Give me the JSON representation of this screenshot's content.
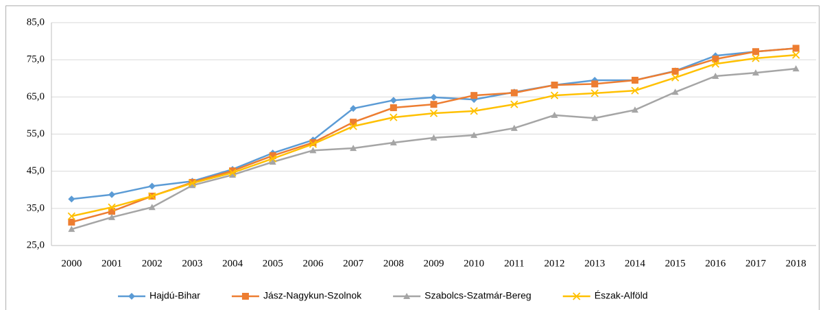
{
  "chart_data": {
    "type": "line",
    "categories": [
      "2000",
      "2001",
      "2002",
      "2003",
      "2004",
      "2005",
      "2006",
      "2007",
      "2008",
      "2009",
      "2010",
      "2011",
      "2012",
      "2013",
      "2014",
      "2015",
      "2016",
      "2017",
      "2018"
    ],
    "series": [
      {
        "name": "Hajdú-Bihar",
        "color": "#5b9bd5",
        "marker": "diamond",
        "values": [
          37.5,
          38.7,
          41.0,
          42.3,
          45.5,
          49.9,
          53.4,
          61.9,
          64.1,
          64.9,
          64.3,
          66.3,
          68.2,
          69.5,
          69.5,
          72.0,
          76.1,
          77.2,
          78.1
        ]
      },
      {
        "name": "Jász-Nagykun-Szolnok",
        "color": "#ed7d31",
        "marker": "square",
        "values": [
          31.3,
          34.2,
          38.3,
          42.0,
          45.1,
          49.2,
          52.7,
          58.2,
          62.1,
          63.0,
          65.4,
          66.1,
          68.2,
          68.5,
          69.5,
          71.9,
          75.2,
          77.2,
          78.1
        ]
      },
      {
        "name": "Szabolcs-Szatmár-Bereg",
        "color": "#a5a5a5",
        "marker": "triangle",
        "values": [
          29.4,
          32.6,
          35.3,
          41.2,
          44.0,
          47.5,
          50.6,
          51.2,
          52.7,
          54.0,
          54.7,
          56.6,
          60.1,
          59.3,
          61.5,
          66.3,
          70.6,
          71.5,
          72.6
        ]
      },
      {
        "name": "Észak-Alföld",
        "color": "#ffc000",
        "marker": "x",
        "values": [
          32.9,
          35.3,
          38.3,
          41.8,
          44.6,
          48.4,
          52.3,
          57.1,
          59.5,
          60.6,
          61.2,
          63.0,
          65.4,
          66.0,
          66.7,
          70.2,
          73.9,
          75.4,
          76.3
        ]
      }
    ],
    "ylim": [
      25,
      85
    ],
    "yticks": [
      {
        "value": 25,
        "label": "25,0"
      },
      {
        "value": 35,
        "label": "35,0"
      },
      {
        "value": 45,
        "label": "45,0"
      },
      {
        "value": 55,
        "label": "55,0"
      },
      {
        "value": 65,
        "label": "65,0"
      },
      {
        "value": 75,
        "label": "75,0"
      },
      {
        "value": 85,
        "label": "85,0"
      }
    ],
    "grid": true,
    "legend": "bottom"
  }
}
